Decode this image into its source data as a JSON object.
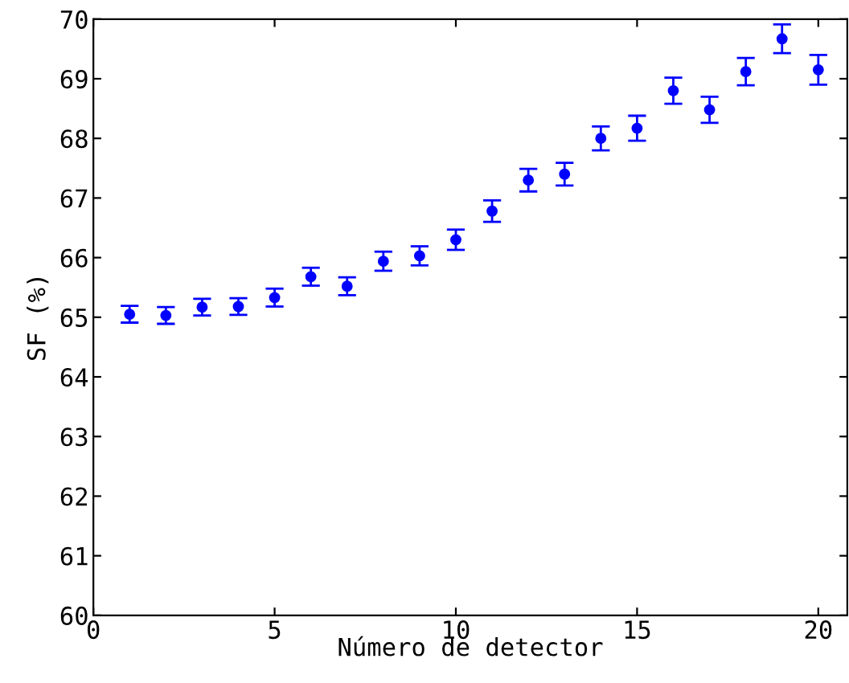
{
  "chart_data": {
    "type": "scatter",
    "xlabel": "Número de detector",
    "ylabel": "SF (%)",
    "x": [
      1,
      2,
      3,
      4,
      5,
      6,
      7,
      8,
      9,
      10,
      11,
      12,
      13,
      14,
      15,
      16,
      17,
      18,
      19,
      20
    ],
    "series": [
      {
        "color": "#0000ff",
        "values": [
          65.05,
          65.03,
          65.17,
          65.18,
          65.33,
          65.68,
          65.52,
          65.94,
          66.03,
          66.3,
          66.78,
          67.3,
          67.4,
          68.0,
          68.17,
          68.8,
          68.48,
          69.12,
          69.67,
          69.15
        ],
        "errors": [
          0.14,
          0.14,
          0.14,
          0.14,
          0.15,
          0.15,
          0.15,
          0.16,
          0.16,
          0.17,
          0.18,
          0.19,
          0.19,
          0.2,
          0.21,
          0.22,
          0.22,
          0.23,
          0.24,
          0.25
        ]
      }
    ],
    "xlim": [
      0,
      20.8
    ],
    "ylim": [
      60,
      70
    ],
    "xticks": [
      0,
      5,
      10,
      15,
      20
    ],
    "yticks": [
      60,
      61,
      62,
      63,
      64,
      65,
      66,
      67,
      68,
      69,
      70
    ],
    "marker": "circle",
    "grid": false,
    "legend": false
  }
}
